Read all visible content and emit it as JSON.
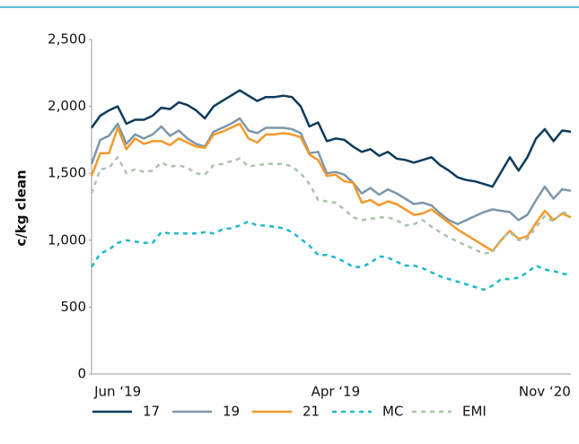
{
  "chart_data": {
    "type": "line",
    "ylabel": "c/kg clean",
    "categories": [
      null,
      null,
      null,
      "Jun ‘19",
      null,
      null,
      null,
      null,
      null,
      null,
      null,
      null,
      null,
      null,
      null,
      null,
      null,
      null,
      null,
      null,
      null,
      null,
      null,
      null,
      null,
      null,
      null,
      null,
      "Apr ‘19",
      null,
      null,
      null,
      null,
      null,
      null,
      null,
      null,
      null,
      null,
      null,
      null,
      null,
      null,
      null,
      null,
      null,
      null,
      null,
      null,
      null,
      null,
      null,
      "Nov ‘20",
      null,
      null,
      null
    ],
    "ylim": [
      0,
      2500
    ],
    "yticks": [
      0,
      500,
      {
        "value": 1000,
        "label": "1,000"
      },
      {
        "value": 1500,
        "label": "1,500"
      },
      {
        "value": 2000,
        "label": "2,000"
      },
      {
        "value": 2500,
        "label": "2,500"
      }
    ],
    "grid": false,
    "legend": "bottom",
    "series": [
      {
        "name": "17",
        "color": "#0d3b5c",
        "dashed": false,
        "values": [
          1840,
          1930,
          1970,
          2000,
          1870,
          1900,
          1900,
          1930,
          1990,
          1980,
          2030,
          2010,
          1970,
          1910,
          2000,
          2040,
          2080,
          2120,
          2080,
          2040,
          2070,
          2070,
          2080,
          2070,
          2000,
          1850,
          1880,
          1740,
          1760,
          1750,
          1700,
          1660,
          1680,
          1630,
          1660,
          1610,
          1600,
          1580,
          1600,
          1620,
          1560,
          1520,
          1470,
          1450,
          1440,
          1420,
          1400,
          1510,
          1620,
          1520,
          1620,
          1760,
          1830,
          1740,
          1820,
          1810
        ]
      },
      {
        "name": "19",
        "color": "#7d97aa",
        "dashed": false,
        "values": [
          1570,
          1750,
          1780,
          1870,
          1720,
          1790,
          1760,
          1790,
          1850,
          1780,
          1820,
          1760,
          1720,
          1700,
          1810,
          1840,
          1870,
          1910,
          1820,
          1800,
          1840,
          1840,
          1840,
          1830,
          1800,
          1650,
          1660,
          1500,
          1510,
          1490,
          1430,
          1350,
          1390,
          1340,
          1380,
          1350,
          1310,
          1270,
          1280,
          1260,
          1200,
          1150,
          1120,
          1150,
          1180,
          1210,
          1230,
          1220,
          1210,
          1150,
          1190,
          1300,
          1400,
          1310,
          1380,
          1370
        ]
      },
      {
        "name": "21",
        "color": "#f39a2b",
        "dashed": false,
        "values": [
          1480,
          1650,
          1650,
          1840,
          1680,
          1760,
          1720,
          1740,
          1740,
          1710,
          1760,
          1730,
          1700,
          1690,
          1790,
          1810,
          1840,
          1870,
          1760,
          1730,
          1790,
          1790,
          1800,
          1790,
          1770,
          1640,
          1600,
          1480,
          1490,
          1440,
          1430,
          1280,
          1300,
          1260,
          1290,
          1270,
          1230,
          1190,
          1200,
          1230,
          1180,
          1130,
          1080,
          1040,
          1000,
          960,
          920,
          1000,
          1070,
          1010,
          1030,
          1130,
          1220,
          1150,
          1200,
          1170
        ]
      },
      {
        "name": "MC",
        "color": "#1fb8cc",
        "dashed": true,
        "values": [
          800,
          900,
          930,
          980,
          1000,
          990,
          980,
          980,
          1060,
          1050,
          1050,
          1050,
          1050,
          1060,
          1050,
          1080,
          1090,
          1110,
          1140,
          1110,
          1110,
          1100,
          1090,
          1060,
          1010,
          960,
          890,
          890,
          870,
          840,
          800,
          800,
          830,
          880,
          870,
          840,
          810,
          810,
          790,
          760,
          730,
          710,
          690,
          670,
          650,
          630,
          660,
          710,
          710,
          720,
          760,
          810,
          780,
          770,
          750,
          740
        ]
      },
      {
        "name": "EMI",
        "color": "#a9c4ac",
        "dashed": true,
        "values": [
          1350,
          1530,
          1540,
          1620,
          1500,
          1530,
          1510,
          1520,
          1580,
          1550,
          1560,
          1540,
          1500,
          1490,
          1560,
          1570,
          1590,
          1610,
          1550,
          1560,
          1570,
          1570,
          1570,
          1550,
          1500,
          1420,
          1300,
          1290,
          1280,
          1230,
          1170,
          1150,
          1160,
          1170,
          1170,
          1150,
          1110,
          1120,
          1150,
          1100,
          1060,
          1020,
          990,
          960,
          930,
          900,
          910,
          1010,
          1060,
          1000,
          1010,
          1100,
          1180,
          1140,
          1210,
          1190
        ]
      }
    ]
  }
}
